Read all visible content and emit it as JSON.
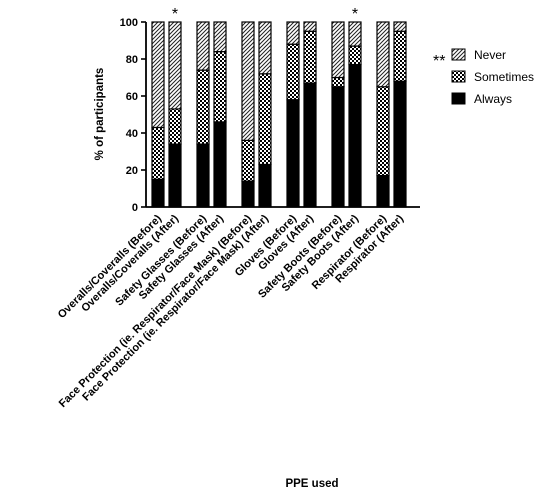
{
  "chart_data": {
    "type": "bar",
    "stacked": true,
    "xlabel": "PPE used",
    "ylabel": "% of participants",
    "ylim": [
      0,
      100
    ],
    "yticks": [
      0,
      20,
      40,
      60,
      80,
      100
    ],
    "grid": false,
    "legend_position": "right",
    "categories": [
      "Overalls/Coveralls (Before)",
      "Overalls/Coveralls (After)",
      "Safety Glasses (Before)",
      "Safety Glasses (After)",
      "Face Protection (ie. Respirator/Face Mask) (Before)",
      "Face Protection (ie. Respirator/Face Mask) (After)",
      "Gloves (Before)",
      "Gloves (After)",
      "Safety Boots (Before)",
      "Safety Boots (After)",
      "Respirator (Before)",
      "Respirator (After)"
    ],
    "series": [
      {
        "name": "Always",
        "pattern": "solid",
        "values": [
          15,
          34,
          34,
          46,
          14,
          23,
          58,
          67,
          65,
          77,
          17,
          68
        ]
      },
      {
        "name": "Sometimes",
        "pattern": "checker",
        "values": [
          28,
          19,
          40,
          38,
          22,
          49,
          30,
          28,
          5,
          10,
          48,
          27
        ]
      },
      {
        "name": "Never",
        "pattern": "hatch",
        "values": [
          57,
          47,
          26,
          16,
          64,
          28,
          12,
          5,
          30,
          13,
          35,
          5
        ]
      }
    ],
    "legend_order": [
      "Never",
      "Sometimes",
      "Always"
    ],
    "annotations": [
      {
        "text": "*",
        "category": "Overalls/Coveralls (After)"
      },
      {
        "text": "*",
        "category": "Safety Boots (After)"
      },
      {
        "text": "**",
        "category": "Respirator (After)"
      }
    ]
  }
}
